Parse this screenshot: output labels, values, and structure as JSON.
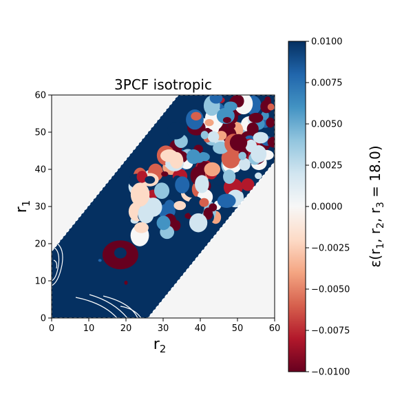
{
  "chart_data": {
    "type": "heatmap",
    "title": "3PCF isotropic",
    "xlabel_base": "r",
    "xlabel_sub": "2",
    "ylabel_base": "r",
    "ylabel_sub": "1",
    "xlim": [
      0,
      60
    ],
    "ylim": [
      0,
      60
    ],
    "xticks": [
      "0",
      "10",
      "20",
      "30",
      "40",
      "50",
      "60"
    ],
    "yticks": [
      "0",
      "10",
      "20",
      "30",
      "40",
      "50",
      "60"
    ],
    "masked_color": "#f5f5f5",
    "valid_region": "|r1 - r2| <= 18.0",
    "grid": false,
    "colorbar": {
      "colormap": "RdBu",
      "vmin": -0.01,
      "vmax": 0.01,
      "ticks": [
        "0.0100",
        "0.0075",
        "0.0050",
        "0.0025",
        "0.0000",
        "−0.0025",
        "−0.0050",
        "−0.0075",
        "−0.0100"
      ],
      "label_eps": "ε",
      "label_args": "(r",
      "label_s1": "1",
      "label_c1": ", r",
      "label_s2": "2",
      "label_c2": ", r",
      "label_s3": "3",
      "label_end": " = 18.0)",
      "colors": [
        "#67001f",
        "#b2182b",
        "#d6604d",
        "#f4a582",
        "#fddbc7",
        "#f7f7f7",
        "#d1e5f0",
        "#92c5de",
        "#4393c3",
        "#2166ac",
        "#053061"
      ]
    },
    "features": [
      {
        "kind": "positive-plateau",
        "description": "lower-left band",
        "value": 0.01
      },
      {
        "kind": "negative-blob",
        "r2": 18,
        "r1": 17,
        "value": -0.01
      },
      {
        "kind": "mixed-fluctuations",
        "region": "upper band r2 > 25",
        "range": [
          -0.01,
          0.01
        ]
      }
    ]
  }
}
